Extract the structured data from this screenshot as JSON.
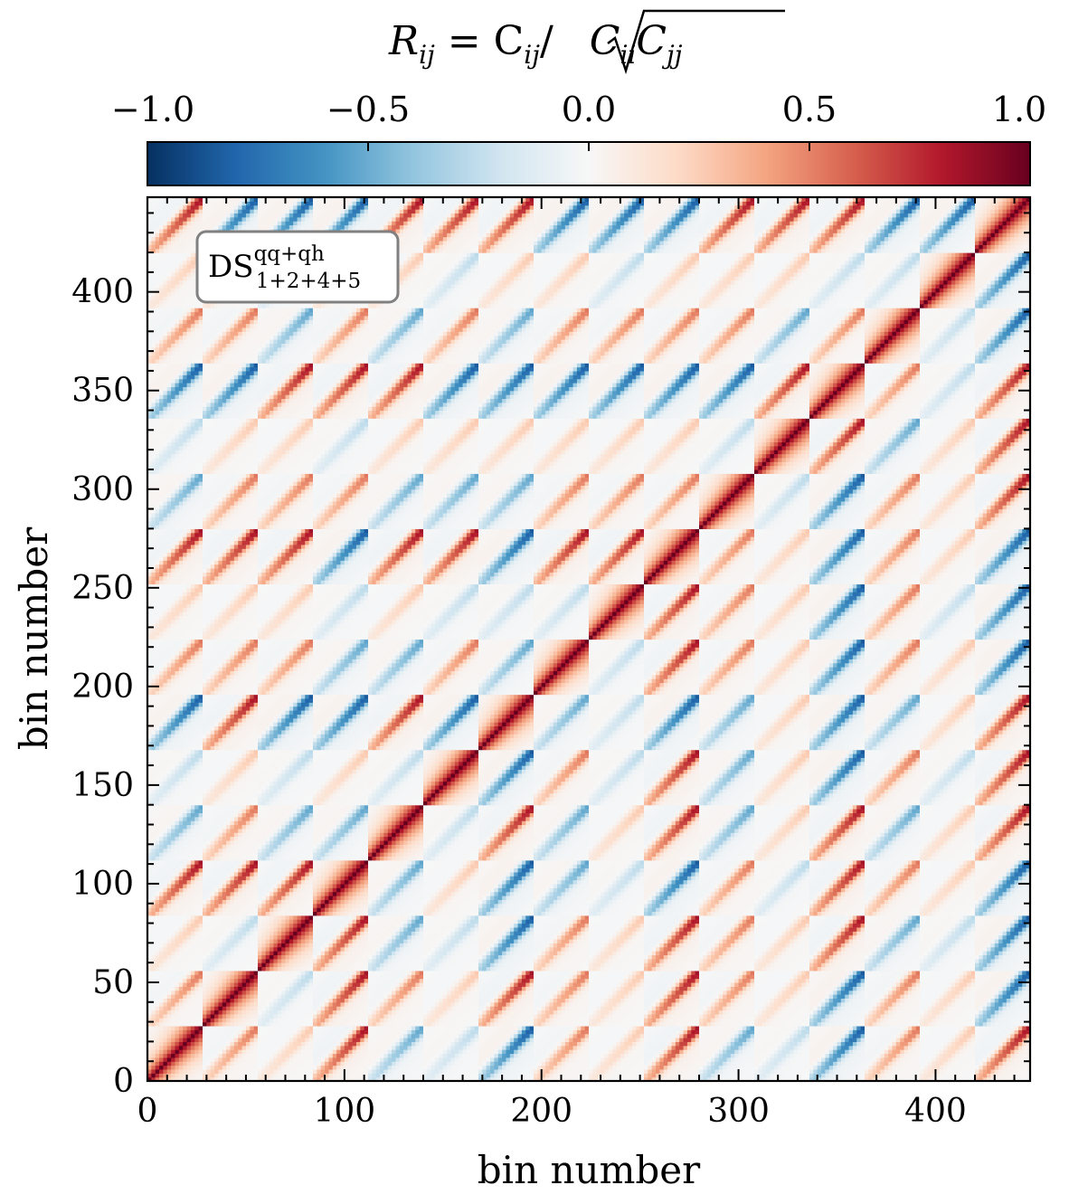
{
  "chart_data": {
    "type": "heatmap",
    "title": "",
    "colorbar": {
      "label_parts": [
        "R",
        "ij",
        " = C",
        "ij",
        "/",
        "C",
        "ii",
        "C",
        "jj"
      ],
      "range": [
        -1.0,
        1.0
      ],
      "ticks": [
        -1.0,
        -0.5,
        0.0,
        0.5,
        1.0
      ],
      "tick_labels": [
        "−1.0",
        "−0.5",
        "0.0",
        "0.5",
        "1.0"
      ],
      "orientation": "horizontal",
      "position": "top",
      "colormap": "RdBu_r",
      "colors": [
        "#053061",
        "#2166ac",
        "#4393c3",
        "#92c5de",
        "#d1e5f0",
        "#f7f7f7",
        "#fddbc7",
        "#f4a582",
        "#d6604d",
        "#b2182b",
        "#67001f"
      ]
    },
    "xlabel": "bin number",
    "ylabel": "bin number",
    "xlim": [
      0,
      448
    ],
    "ylim": [
      0,
      448
    ],
    "xticks": [
      0,
      100,
      200,
      300,
      400
    ],
    "xtick_labels": [
      "0",
      "100",
      "200",
      "300",
      "400"
    ],
    "yticks": [
      0,
      50,
      100,
      150,
      200,
      250,
      300,
      350,
      400
    ],
    "ytick_labels": [
      "0",
      "50",
      "100",
      "150",
      "200",
      "250",
      "300",
      "350",
      "400"
    ],
    "n_bins": 448,
    "block_size": 28,
    "n_blocks": 16,
    "annotation": {
      "text_main": "DS",
      "text_sup": "qq+qh",
      "text_sub": "1+2+4+5",
      "placement": "top-left"
    }
  }
}
